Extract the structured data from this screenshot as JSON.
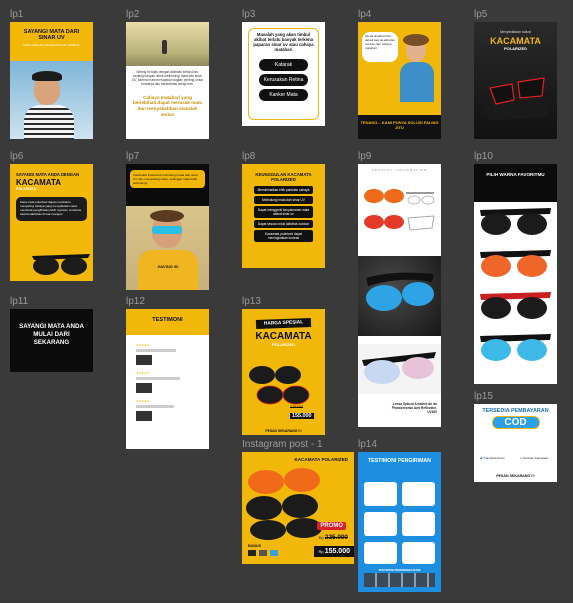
{
  "canvas": {
    "background": "#3a3a3a",
    "accent": "#f1b80a"
  },
  "frames": {
    "lp1": {
      "label": "lp1",
      "heading": "SAYANGI MATA DARI SINAR UV",
      "subheading": "MATA ADALAH PENGHASILAN TERBAIK"
    },
    "lp2": {
      "label": "lp2",
      "body": "Seiring ini tidak dengan aktivitas sehari-hari, penting banyak untuk melindungi mata dari sinar UV, karena mata merupakan bagian penting untuk berkarya dan beraktivitas setiap hari.",
      "highlight": "Cahaya matahari yang berlebihan dapat merusak mata dan menyebabkan masalah serius"
    },
    "lp3": {
      "label": "lp3",
      "question": "Masalah yang akan timbul akibat terlalu banyak terkena paparan sinar uv atau cahaya matahari",
      "buttons": [
        "Katarak",
        "Kerusakan Retina",
        "Kanker Mata"
      ]
    },
    "lp4": {
      "label": "lp4",
      "bubble": "Tanpa disadari bisa terjadi karena aktivitas outdoor dan cahaya matahari",
      "footer": "TENANG... KAMI PUNYA SOLUSI PALING JITU"
    },
    "lp5": {
      "label": "lp5",
      "kicker": "Menyediakan solusi",
      "title": "KACAMATA",
      "subtitle": "POLARIZED"
    },
    "lp6": {
      "label": "lp6",
      "heading": "SAYANGI MATA ANDA DENGAN",
      "title": "KACAMATA",
      "subtitle": "POLARIZED",
      "body": "Kaca mata polarized dapat membantu menyaring cahaya yang menyilaukan serta membuat penglihatan lebih nyaman, terutama saat beraktivitas di luar ruangan"
    },
    "lp7": {
      "label": "lp7",
      "caption": "Kacamata Polarized melindungi mata dari sinar UV dan mengurangi silau, sehingga mata lebih terlindungi",
      "shirt": "HAVING 90"
    },
    "lp8": {
      "label": "lp8",
      "heading": "KEUNGGULAN KACAMATA POLARIZED",
      "items": [
        "Meminimalkan efek pantulan cahaya",
        "Melindungi mata dari sinar UV",
        "Dapat mengganti kenyamanan mata akibat sinar uv",
        "Dapat sesuai untuk aktivitas outdoor",
        "Kacamata polarized dapat meningkatkan kontras"
      ]
    },
    "lp9": {
      "label": "lp9",
      "spec_title": "PRODUCT INFORMATION",
      "desc": "Lensa Optical Ambient Air an Photochromic Anti Reflective, UV400"
    },
    "lp10": {
      "label": "lp10",
      "heading": "PILIH WARNA FAVORITMU"
    },
    "lp11": {
      "label": "lp11",
      "text": "SAYANGI MATA ANDA MULAI DARI SEKARANG"
    },
    "lp12": {
      "label": "lp12",
      "heading": "TESTIMONI"
    },
    "lp13": {
      "label": "lp13",
      "badge": "HARGA SPESIAL",
      "title": "KACAMATA",
      "subtitle": "POLARIZED",
      "old_price": "225.000",
      "new_price": "155.000",
      "cta": "PESAN SEKARANG !!!"
    },
    "ig": {
      "label": "Instagram post - 1",
      "title": "KACAMATA POLARIZED",
      "promo": "PROMO",
      "bonus": "BONUS",
      "old_price": "225.000",
      "new_price": "155.000",
      "currency": "Rp"
    },
    "lp14": {
      "label": "lp14",
      "heading": "TESTIMONI PENGIRIMAN",
      "footer": "TESTIMONI PENGIRIMAN KAMI"
    },
    "lp15": {
      "label": "lp15",
      "heading": "TERSEDIA PEMBAYARAN",
      "cod": "COD",
      "trust_left": "Transaksi Aman",
      "trust_right": "Jaminan Kepuasan",
      "cta": "PESAN SEKARANG !!!"
    }
  }
}
